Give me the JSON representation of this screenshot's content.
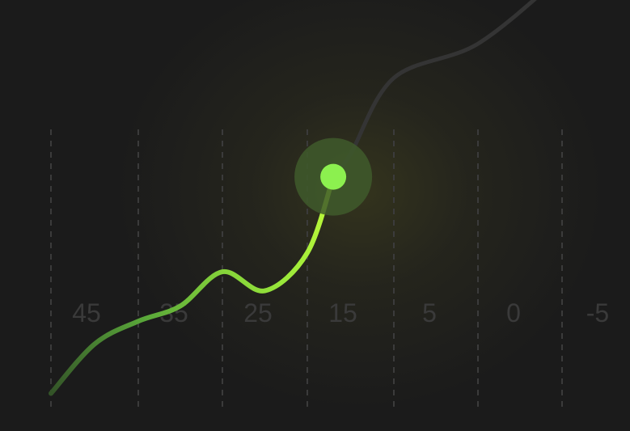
{
  "chart_data": {
    "type": "line",
    "x_ticks": [
      "45",
      "35",
      "25",
      "15",
      "5",
      "0",
      "-5"
    ],
    "grid": "vertical dashed",
    "series": [
      {
        "style": "green gradient curve with highlighted marker",
        "points": [
          [
            45,
            0.05
          ],
          [
            40,
            0.18
          ],
          [
            35,
            0.24
          ],
          [
            30,
            0.28
          ],
          [
            25,
            0.37
          ],
          [
            20,
            0.32
          ],
          [
            15,
            0.42
          ],
          [
            12,
            0.62
          ],
          [
            10,
            0.68
          ],
          [
            5,
            0.88
          ],
          [
            0,
            0.97
          ],
          [
            -5,
            1.15
          ]
        ],
        "highlighted_index": 7
      }
    ],
    "colors": {
      "background": "#1b1b1b",
      "active_line": "#b5f53c",
      "faded_line": "#343434",
      "marker": "#8cf04f",
      "marker_halo": "#3f5a2b",
      "grid": "#3b3b3b",
      "tick_text": "#3a3a3a"
    }
  }
}
